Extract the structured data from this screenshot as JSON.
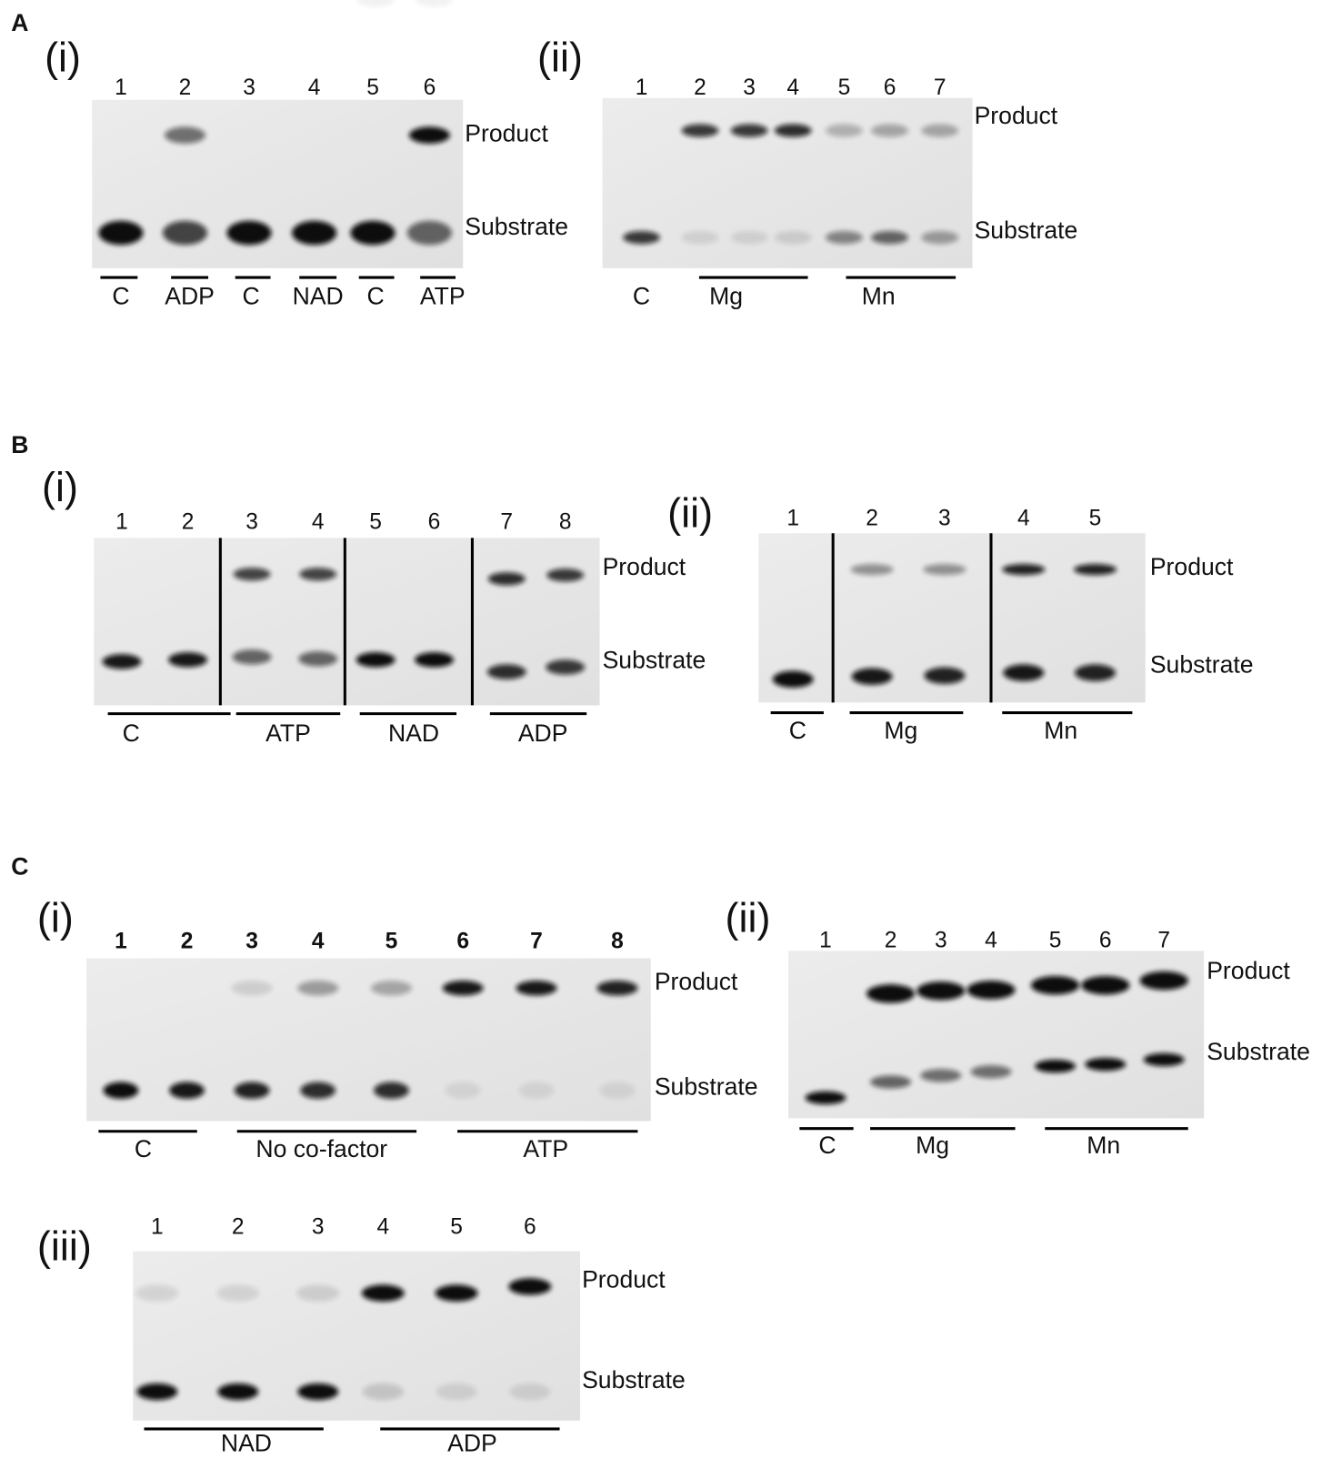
{
  "panels": [
    {
      "label": "A",
      "subpanels": [
        {
          "label": "(i)",
          "lanes": [
            "1",
            "2",
            "3",
            "4",
            "5",
            "6"
          ],
          "bands": [
            "Product",
            "Substrate"
          ],
          "groups": [
            "C",
            "ADP",
            "C",
            "NAD",
            "C",
            "ATP"
          ]
        },
        {
          "label": "(ii)",
          "lanes": [
            "1",
            "2",
            "3",
            "4",
            "5",
            "6",
            "7"
          ],
          "bands": [
            "Product",
            "Substrate"
          ],
          "groups": [
            "C",
            "Mg",
            "Mn"
          ]
        }
      ]
    },
    {
      "label": "B",
      "subpanels": [
        {
          "label": "(i)",
          "lanes": [
            "1",
            "2",
            "3",
            "4",
            "5",
            "6",
            "7",
            "8"
          ],
          "bands": [
            "Product",
            "Substrate"
          ],
          "groups": [
            "C",
            "ATP",
            "NAD",
            "ADP"
          ]
        },
        {
          "label": "(ii)",
          "lanes": [
            "1",
            "2",
            "3",
            "4",
            "5"
          ],
          "bands": [
            "Product",
            "Substrate"
          ],
          "groups": [
            "C",
            "Mg",
            "Mn"
          ]
        }
      ]
    },
    {
      "label": "C",
      "subpanels": [
        {
          "label": "(i)",
          "lanes": [
            "1",
            "2",
            "3",
            "4",
            "5",
            "6",
            "7",
            "8"
          ],
          "bands": [
            "Product",
            "Substrate"
          ],
          "groups": [
            "C",
            "No co-factor",
            "ATP"
          ]
        },
        {
          "label": "(ii)",
          "lanes": [
            "1",
            "2",
            "3",
            "4",
            "5",
            "6",
            "7"
          ],
          "bands": [
            "Product",
            "Substrate"
          ],
          "groups": [
            "C",
            "Mg",
            "Mn"
          ]
        },
        {
          "label": "(iii)",
          "lanes": [
            "1",
            "2",
            "3",
            "4",
            "5",
            "6"
          ],
          "bands": [
            "Product",
            "Substrate"
          ],
          "groups": [
            "NAD",
            "ADP"
          ]
        }
      ]
    }
  ]
}
